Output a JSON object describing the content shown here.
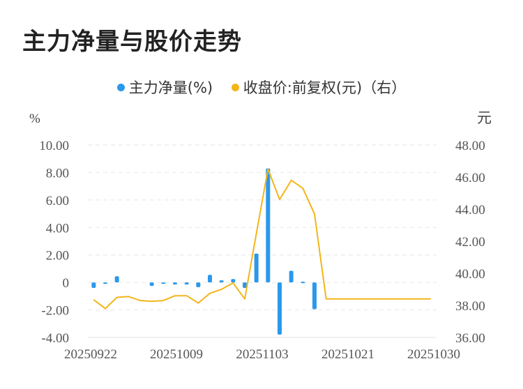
{
  "page_title": "主力净量与股价走势",
  "legend": {
    "series1": "主力净量(%)",
    "series2": "收盘价:前复权(元)（右）"
  },
  "colors": {
    "bar": "#2b98ec",
    "line": "#f3b51a",
    "grid": "#e6e6e6",
    "axis_text": "#555555"
  },
  "chart_data": {
    "type": "bar+line",
    "left_axis_unit": "%",
    "right_axis_unit": "元",
    "left_ylim": [
      -4,
      10
    ],
    "left_ticks": [
      10,
      8,
      6,
      4,
      2,
      0,
      -2,
      -4
    ],
    "left_tick_labels": [
      "10.00",
      "8.00",
      "6.00",
      "4.00",
      "2.00",
      "0",
      "-2.00",
      "-4.00"
    ],
    "right_ylim": [
      36,
      48
    ],
    "right_ticks": [
      48,
      46,
      44,
      42,
      40,
      38,
      36
    ],
    "right_tick_labels": [
      "48.00",
      "46.00",
      "44.00",
      "42.00",
      "40.00",
      "38.00",
      "36.00"
    ],
    "x_tick_labels": [
      "20250922",
      "20251009",
      "20251103",
      "20251021",
      "20251030"
    ],
    "grid": true,
    "legend_position": "top",
    "series": [
      {
        "name": "主力净量(%)",
        "type": "bar",
        "values": [
          -0.4,
          -0.1,
          0.45,
          0,
          0,
          -0.25,
          -0.1,
          -0.15,
          -0.15,
          -0.35,
          0.55,
          0.15,
          0.25,
          -0.4,
          2.1,
          8.3,
          -3.8,
          0.85,
          0.05,
          -1.95,
          null,
          null,
          null,
          null,
          null,
          null,
          null,
          null,
          null,
          null
        ]
      },
      {
        "name": "收盘价:前复权(元)（右）",
        "type": "line",
        "values": [
          38.35,
          37.8,
          38.5,
          38.55,
          38.3,
          38.25,
          38.3,
          38.6,
          38.6,
          38.15,
          38.75,
          39.0,
          39.4,
          38.4,
          42.5,
          46.5,
          44.6,
          45.8,
          45.3,
          43.7,
          38.4,
          38.4,
          38.4,
          38.4,
          38.4,
          38.4,
          38.4,
          38.4,
          38.4,
          38.4
        ]
      }
    ]
  }
}
